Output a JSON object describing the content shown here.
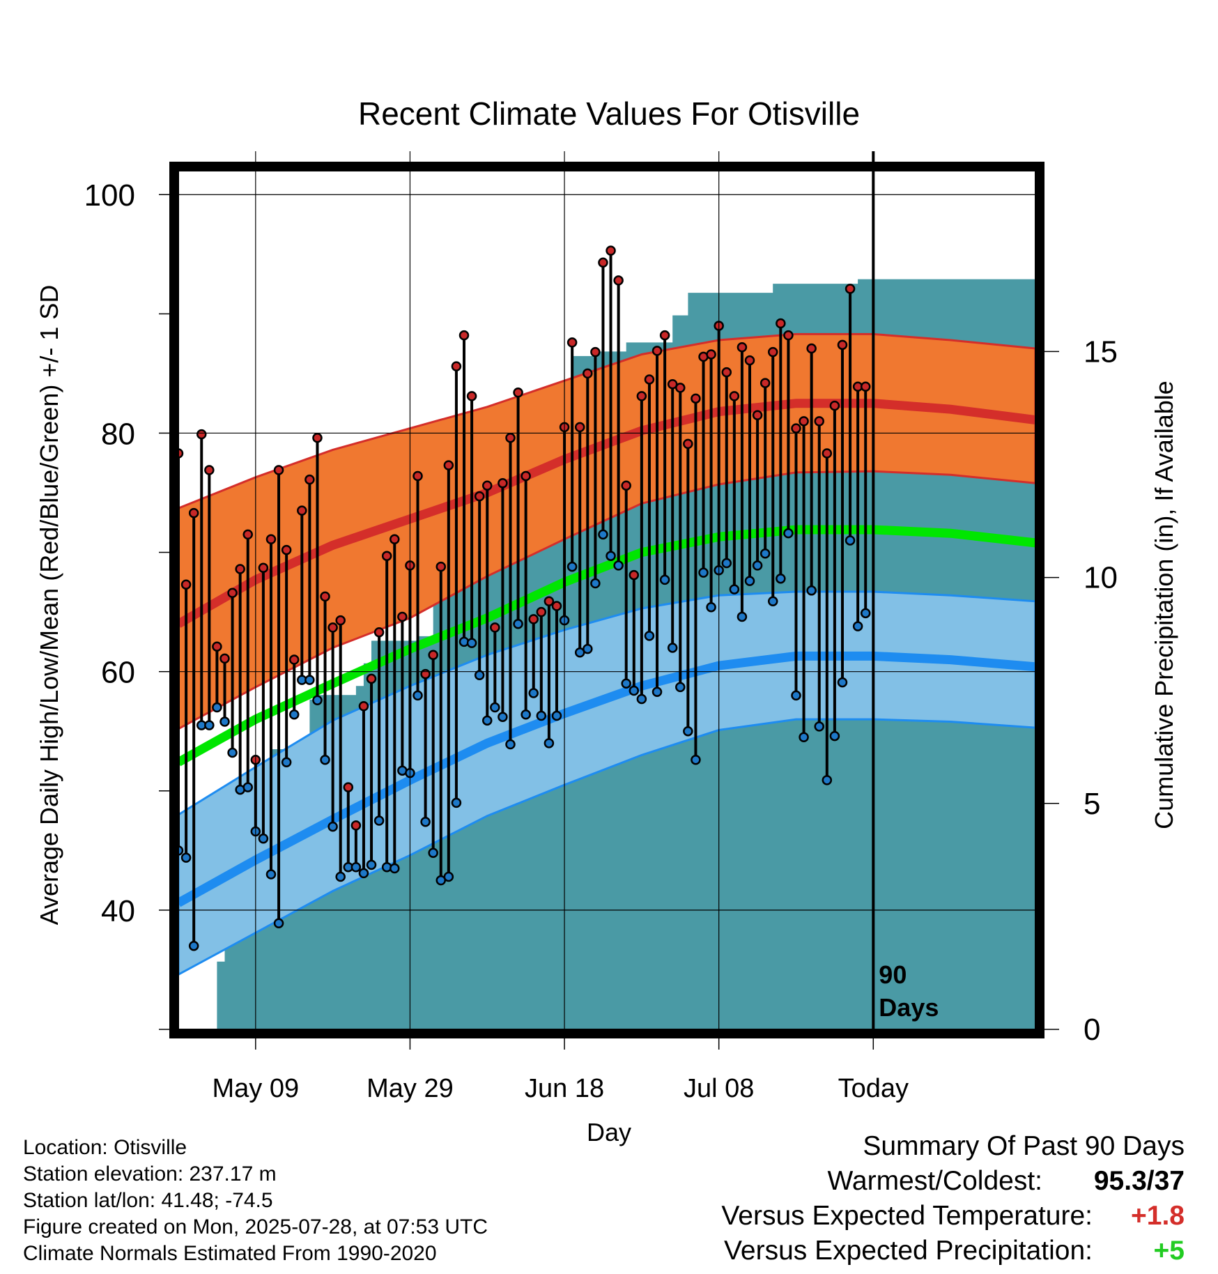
{
  "chart_data": {
    "type": "line",
    "title": "Recent Climate Values For Otisville",
    "xlabel": "Day",
    "ylabel": "Average Daily High/Low/Mean (Red/Blue/Green) +/- 1 SD",
    "y2label": "Cumulative Precipitation (in), If Available",
    "x_start": "2025-04-29",
    "x_end": "2025-08-18",
    "ylim": [
      30,
      102
    ],
    "y2lim": [
      0,
      19
    ],
    "y_ticks": [
      100,
      80,
      60,
      40
    ],
    "y2_ticks": [
      15,
      10,
      5,
      0
    ],
    "x_tick_labels": [
      {
        "date": "2025-05-09",
        "label": "May 09"
      },
      {
        "date": "2025-05-29",
        "label": "May 29"
      },
      {
        "date": "2025-06-18",
        "label": "Jun 18"
      },
      {
        "date": "2025-07-08",
        "label": "Jul 08"
      },
      {
        "date": "2025-07-28",
        "label": "Today"
      }
    ],
    "today": "2025-07-28",
    "today_label": "90 Days",
    "grid": true,
    "colors": {
      "high_band": "#f07830",
      "high_band_edge": "#d42e2a",
      "high_mean": "#d42e2a",
      "low_band": "#82c0e6",
      "low_band_edge": "#1e8cf0",
      "low_mean": "#1e8cf0",
      "daily_mean": "#00e600",
      "precip": "#4a9aa5",
      "dot_high": "#c82828",
      "dot_low": "#1e78c8",
      "positive_temp": "#d42e2a",
      "positive_precip": "#22cc22"
    },
    "normal_curves": {
      "dates": [
        "2025-04-29",
        "2025-05-09",
        "2025-05-19",
        "2025-05-29",
        "2025-06-08",
        "2025-06-18",
        "2025-06-28",
        "2025-07-08",
        "2025-07-18",
        "2025-07-28",
        "2025-08-07",
        "2025-08-18"
      ],
      "high_mean": [
        64.0,
        67.7,
        70.6,
        72.8,
        75.0,
        77.8,
        80.2,
        81.8,
        82.5,
        82.5,
        82.0,
        81.1
      ],
      "high_upper": [
        73.7,
        76.3,
        78.6,
        80.4,
        82.2,
        84.4,
        86.6,
        87.8,
        88.3,
        88.3,
        87.8,
        87.1
      ],
      "high_lower": [
        55.2,
        58.7,
        62.0,
        64.5,
        68.0,
        71.1,
        74.1,
        75.7,
        76.7,
        76.8,
        76.5,
        75.8
      ],
      "low_mean": [
        40.6,
        44.2,
        47.6,
        50.9,
        54.0,
        56.5,
        58.8,
        60.5,
        61.3,
        61.3,
        61.0,
        60.4
      ],
      "low_upper": [
        48.0,
        52.0,
        55.9,
        58.8,
        61.4,
        63.5,
        65.3,
        66.4,
        66.7,
        66.7,
        66.4,
        65.9
      ],
      "low_lower": [
        34.6,
        38.1,
        41.6,
        44.6,
        47.9,
        50.5,
        53.0,
        55.1,
        56.0,
        56.0,
        55.8,
        55.3
      ],
      "daily_mean": [
        52.4,
        56.0,
        59.0,
        61.9,
        64.5,
        67.5,
        70.0,
        71.3,
        71.9,
        71.9,
        71.6,
        70.8
      ]
    },
    "daily": {
      "start_date": "2025-04-29",
      "high": [
        78.3,
        67.3,
        73.3,
        79.9,
        76.9,
        62.1,
        61.1,
        66.6,
        68.6,
        71.5,
        52.6,
        68.7,
        71.1,
        76.9,
        70.2,
        61.0,
        73.5,
        76.1,
        79.6,
        66.3,
        63.7,
        64.3,
        50.3,
        47.1,
        57.1,
        59.4,
        63.3,
        69.7,
        71.1,
        64.6,
        68.9,
        76.4,
        59.8,
        61.4,
        68.8,
        77.3,
        85.6,
        88.2,
        83.1,
        74.7,
        75.6,
        63.7,
        75.8,
        79.6,
        83.4,
        76.4,
        64.4,
        65.0,
        65.9,
        65.5,
        80.5,
        87.6,
        80.5,
        85.0,
        86.8,
        94.3,
        95.3,
        92.8,
        75.6,
        68.1,
        83.1,
        84.5,
        86.9,
        88.2,
        84.1,
        83.8,
        79.1,
        82.9,
        86.4,
        86.6,
        89.0,
        85.1,
        83.1,
        87.2,
        86.1,
        81.5,
        84.2,
        86.8,
        89.2,
        88.2,
        80.4,
        81.0,
        87.1,
        81.0,
        78.3,
        82.3,
        87.4,
        92.1,
        83.9,
        83.9
      ],
      "low": [
        45.0,
        44.4,
        37.0,
        55.5,
        55.5,
        57.0,
        55.8,
        53.2,
        50.1,
        50.3,
        46.6,
        46.0,
        43.0,
        38.9,
        52.4,
        56.4,
        59.3,
        59.3,
        57.6,
        52.6,
        47.0,
        42.8,
        43.6,
        43.6,
        43.1,
        43.8,
        47.5,
        43.6,
        43.5,
        51.7,
        51.5,
        58.0,
        47.4,
        44.8,
        42.5,
        42.8,
        49.0,
        62.5,
        62.4,
        59.7,
        55.9,
        57.0,
        56.2,
        53.9,
        64.0,
        56.4,
        58.2,
        56.3,
        54.0,
        56.3,
        64.3,
        68.8,
        61.6,
        61.9,
        67.4,
        71.5,
        69.7,
        68.9,
        59.0,
        58.4,
        57.7,
        63.0,
        58.3,
        67.7,
        62.0,
        58.7,
        55.0,
        52.6,
        68.3,
        65.4,
        68.5,
        69.1,
        66.9,
        64.6,
        67.6,
        68.9,
        69.9,
        65.9,
        67.8,
        71.6,
        58.0,
        54.5,
        66.8,
        55.4,
        50.9,
        54.6,
        59.1,
        71.0,
        63.8,
        64.9
      ]
    },
    "precip": {
      "start_date": "2025-04-29",
      "cumulative": [
        0.0,
        0.0,
        0.0,
        0.0,
        0.0,
        1.5,
        3.0,
        3.4,
        4.2,
        4.2,
        4.2,
        4.8,
        6.2,
        6.2,
        6.2,
        6.2,
        6.3,
        7.3,
        7.4,
        7.4,
        7.4,
        7.4,
        7.4,
        7.6,
        8.1,
        8.6,
        8.6,
        8.6,
        8.6,
        8.6,
        8.6,
        8.7,
        8.7,
        11.2,
        11.2,
        11.2,
        11.2,
        11.2,
        11.2,
        11.2,
        11.7,
        11.8,
        12.0,
        12.1,
        12.1,
        12.1,
        12.1,
        12.1,
        12.2,
        12.2,
        12.9,
        14.9,
        14.9,
        14.9,
        15.0,
        15.0,
        15.0,
        15.0,
        15.2,
        15.2,
        15.2,
        15.2,
        15.2,
        15.2,
        15.8,
        15.8,
        16.3,
        16.3,
        16.3,
        16.3,
        16.3,
        16.3,
        16.3,
        16.3,
        16.3,
        16.3,
        16.3,
        16.5,
        16.5,
        16.5,
        16.5,
        16.5,
        16.5,
        16.5,
        16.5,
        16.5,
        16.5,
        16.5,
        16.6,
        16.6,
        16.6,
        16.6,
        16.6,
        16.6,
        16.6,
        16.6,
        16.6,
        16.6,
        16.6,
        16.6,
        16.6,
        16.6,
        16.6,
        16.6,
        16.6,
        16.6,
        16.6,
        16.6,
        16.6,
        16.6,
        16.6
      ]
    }
  },
  "footer": {
    "location": "Location: Otisville",
    "elevation": "Station elevation: 237.17 m",
    "latlon": "Station lat/lon: 41.48; -74.5",
    "created": "Figure created on Mon, 2025-07-28, at 07:53 UTC",
    "normals": "Climate Normals Estimated From 1990-2020"
  },
  "summary": {
    "heading": "Summary Of Past 90 Days",
    "warm_cold_label": "Warmest/Coldest:",
    "warm_cold_warm": "95.3",
    "warm_cold_sep": "/",
    "warm_cold_cold": "37",
    "temp_label": "Versus Expected Temperature:",
    "temp_value": "+1.8",
    "precip_label": "Versus Expected Precipitation:",
    "precip_value": "+5"
  }
}
